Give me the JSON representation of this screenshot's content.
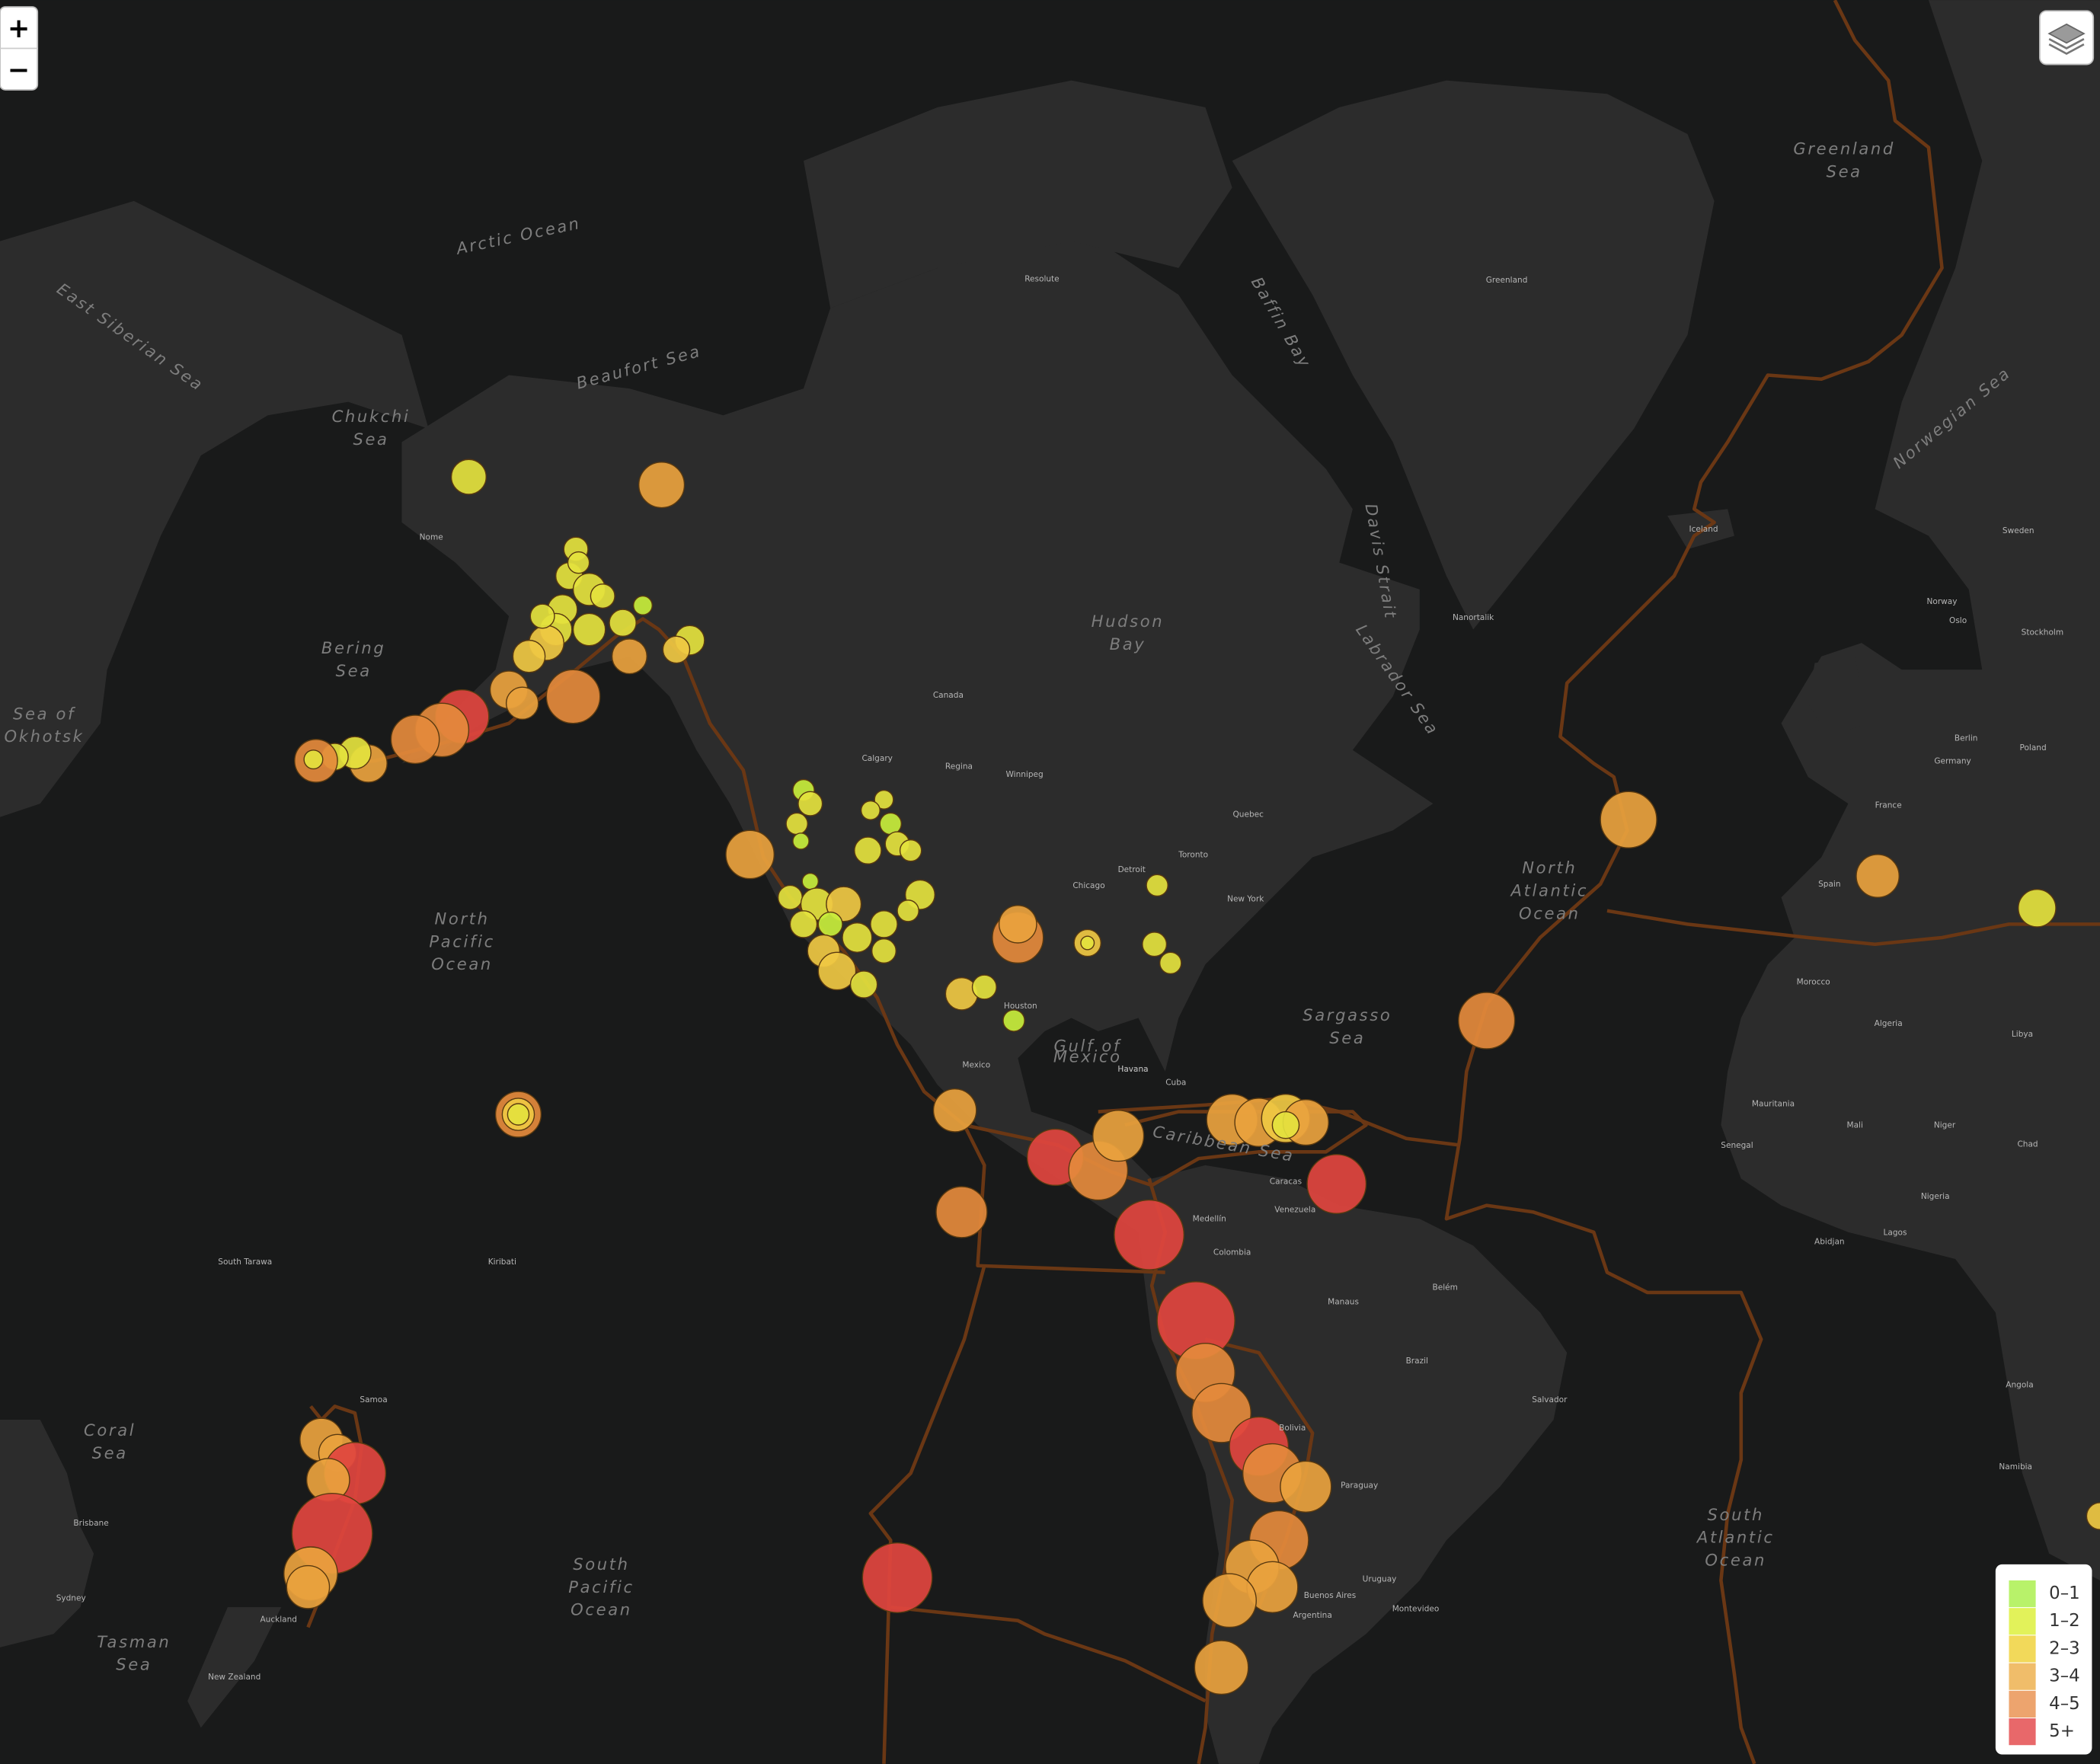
{
  "controls": {
    "zoom_in": "+",
    "zoom_out": "−"
  },
  "legend": {
    "items": [
      {
        "label": "0–1",
        "color": "#b8f26a"
      },
      {
        "label": "1–2",
        "color": "#e2f25a"
      },
      {
        "label": "2–3",
        "color": "#f2d95a"
      },
      {
        "label": "3–4",
        "color": "#f0bd6a"
      },
      {
        "label": "4–5",
        "color": "#eda46e"
      },
      {
        "label": "5+",
        "color": "#e8686a"
      }
    ]
  },
  "labels": {
    "water": [
      [
        "Arctic Ocean"
      ],
      [
        "East Siberian Sea"
      ],
      [
        "Chukchi",
        "Sea"
      ],
      [
        "Beaufort Sea"
      ],
      [
        "Bering",
        "Sea"
      ],
      [
        "Sea of",
        "Okhotsk"
      ],
      [
        "North",
        "Pacific",
        "Ocean"
      ],
      [
        "Hudson",
        "Bay"
      ],
      [
        "Baffin Bay"
      ],
      [
        "Davis Strait"
      ],
      [
        "Labrador Sea"
      ],
      [
        "Greenland",
        "Sea"
      ],
      [
        "Norwegian Sea"
      ],
      [
        "North",
        "Atlantic",
        "Ocean"
      ],
      [
        "Sargasso",
        "Sea"
      ],
      [
        "Gulf of",
        "Mexico"
      ],
      [
        "Caribbean Sea"
      ],
      [
        "Coral",
        "Sea"
      ],
      [
        "Tasman",
        "Sea"
      ],
      [
        "South",
        "Pacific",
        "Ocean"
      ],
      [
        "South",
        "Atlantic",
        "Ocean"
      ]
    ],
    "places": [
      "Canada",
      "Greenland",
      "Iceland",
      "Norway",
      "Sweden",
      "France",
      "Spain",
      "Germany",
      "Poland",
      "Algeria",
      "Libya",
      "Morocco",
      "Mali",
      "Niger",
      "Chad",
      "Nigeria",
      "Mauritania",
      "Senegal",
      "Angola",
      "Namibia",
      "Brazil",
      "Bolivia",
      "Paraguay",
      "Argentina",
      "Uruguay",
      "Colombia",
      "Venezuela",
      "Mexico",
      "Cuba",
      "Manaus",
      "Medellín",
      "Caracas",
      "Havana",
      "Houston",
      "Chicago",
      "Toronto",
      "Detroit",
      "New York",
      "Quebec",
      "Calgary",
      "Winnipeg",
      "Regina",
      "Montevideo",
      "Buenos Aires",
      "Salvador",
      "Belém",
      "Auckland",
      "New Zealand",
      "Sydney",
      "Brisbane",
      "Kiribati",
      "South Tarawa",
      "Samoa",
      "Lagos",
      "Abidjan",
      "Stockholm",
      "Berlin",
      "Oslo",
      "Resolute",
      "Nome",
      "Nanortalik",
      "Havana"
    ]
  }
}
